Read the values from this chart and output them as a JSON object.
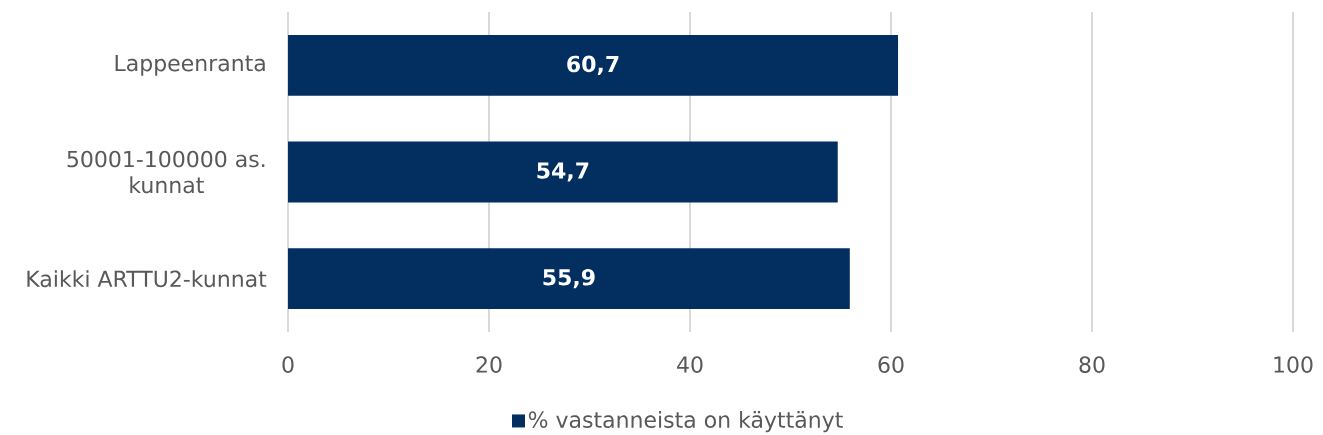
{
  "chart_data": {
    "type": "bar",
    "orientation": "horizontal",
    "categories": [
      "Lappeenranta",
      "50001-100000 as. kunnat",
      "Kaikki ARTTU2-kunnat"
    ],
    "series": [
      {
        "name": "% vastanneista on käyttänyt",
        "color": "#022f5f",
        "values": [
          60.7,
          54.7,
          55.9
        ],
        "value_labels": [
          "60,7",
          "54,7",
          "55,9"
        ]
      }
    ],
    "xlim": [
      0,
      100
    ],
    "xticks": [
      0,
      20,
      40,
      60,
      80,
      100
    ],
    "grid": "x",
    "legend": "bottom"
  }
}
